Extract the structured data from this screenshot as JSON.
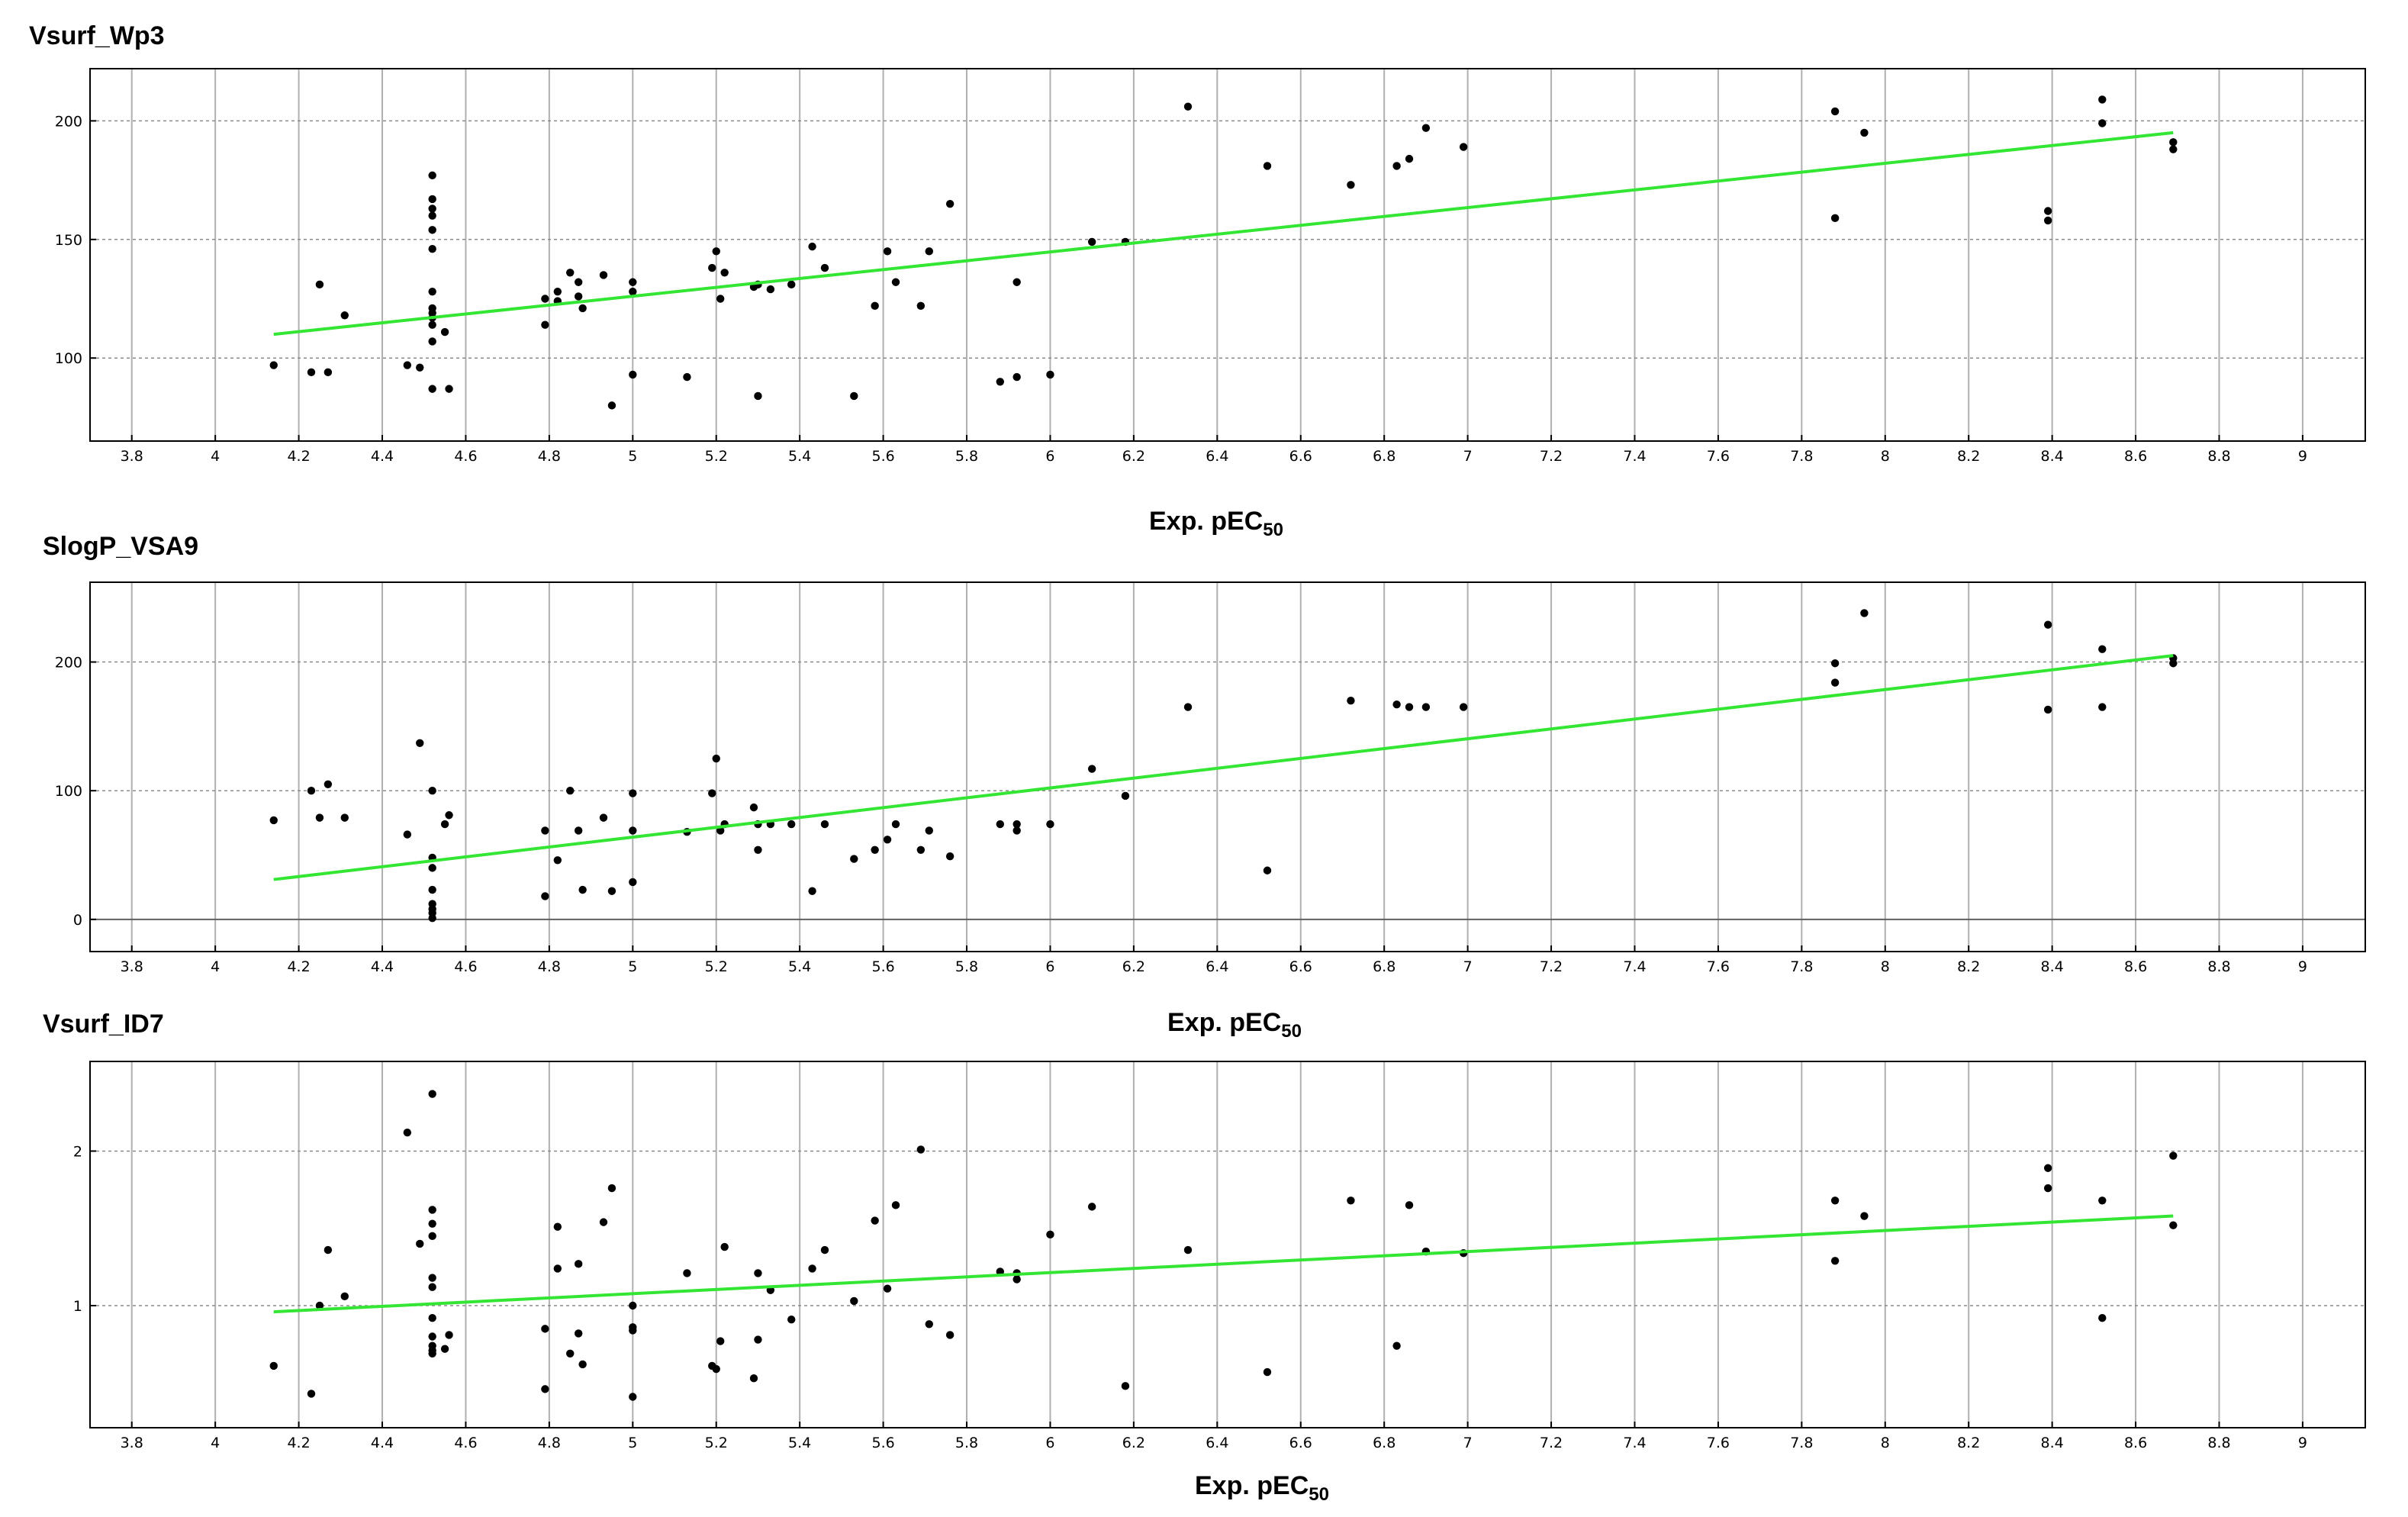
{
  "chart_data": [
    {
      "type": "scatter",
      "title": "Vsurf_Wp3",
      "xlabel": "Exp. pEC",
      "xlabel_sub": "50",
      "ylabel": "",
      "xlim": [
        3.7,
        9.15
      ],
      "ylim": [
        65,
        222
      ],
      "x_ticks": [
        3.8,
        4,
        4.2,
        4.4,
        4.6,
        4.8,
        5,
        5.2,
        5.4,
        5.6,
        5.8,
        6,
        6.2,
        6.4,
        6.6,
        6.8,
        7,
        7.2,
        7.4,
        7.6,
        7.8,
        8,
        8.2,
        8.4,
        8.6,
        8.8,
        9
      ],
      "y_ticks": [
        100,
        150,
        200
      ],
      "grid": true,
      "trendline": {
        "x": [
          4.14,
          8.69
        ],
        "y": [
          110,
          195
        ],
        "color": "#33e633"
      },
      "points": [
        [
          4.14,
          97
        ],
        [
          4.23,
          94
        ],
        [
          4.25,
          131
        ],
        [
          4.27,
          94
        ],
        [
          4.31,
          118
        ],
        [
          4.46,
          97
        ],
        [
          4.49,
          96
        ],
        [
          4.52,
          177
        ],
        [
          4.52,
          167
        ],
        [
          4.52,
          163
        ],
        [
          4.52,
          160
        ],
        [
          4.52,
          154
        ],
        [
          4.52,
          146
        ],
        [
          4.52,
          128
        ],
        [
          4.52,
          121
        ],
        [
          4.52,
          119
        ],
        [
          4.52,
          117
        ],
        [
          4.52,
          114
        ],
        [
          4.52,
          107
        ],
        [
          4.52,
          87
        ],
        [
          4.55,
          111
        ],
        [
          4.56,
          87
        ],
        [
          4.79,
          125
        ],
        [
          4.79,
          114
        ],
        [
          4.82,
          128
        ],
        [
          4.82,
          124
        ],
        [
          4.85,
          136
        ],
        [
          4.87,
          132
        ],
        [
          4.87,
          126
        ],
        [
          4.88,
          121
        ],
        [
          4.93,
          135
        ],
        [
          4.95,
          80
        ],
        [
          5.0,
          132
        ],
        [
          5.0,
          128
        ],
        [
          5.0,
          93
        ],
        [
          5.13,
          92
        ],
        [
          5.19,
          138
        ],
        [
          5.2,
          145
        ],
        [
          5.21,
          125
        ],
        [
          5.22,
          136
        ],
        [
          5.29,
          130
        ],
        [
          5.3,
          84
        ],
        [
          5.3,
          131
        ],
        [
          5.33,
          129
        ],
        [
          5.38,
          131
        ],
        [
          5.43,
          147
        ],
        [
          5.46,
          138
        ],
        [
          5.53,
          84
        ],
        [
          5.58,
          122
        ],
        [
          5.61,
          145
        ],
        [
          5.63,
          132
        ],
        [
          5.69,
          122
        ],
        [
          5.71,
          145
        ],
        [
          5.76,
          165
        ],
        [
          5.88,
          90
        ],
        [
          5.92,
          92
        ],
        [
          5.92,
          132
        ],
        [
          6.0,
          93
        ],
        [
          6.1,
          149
        ],
        [
          6.18,
          149
        ],
        [
          6.33,
          206
        ],
        [
          6.52,
          181
        ],
        [
          6.72,
          173
        ],
        [
          6.83,
          181
        ],
        [
          6.86,
          184
        ],
        [
          6.9,
          197
        ],
        [
          6.99,
          189
        ],
        [
          7.88,
          204
        ],
        [
          7.88,
          159
        ],
        [
          7.95,
          195
        ],
        [
          8.39,
          162
        ],
        [
          8.39,
          158
        ],
        [
          8.52,
          209
        ],
        [
          8.52,
          199
        ],
        [
          8.69,
          191
        ],
        [
          8.69,
          188
        ]
      ]
    },
    {
      "type": "scatter",
      "title": "SlogP_VSA9",
      "xlabel": "Exp. pEC",
      "xlabel_sub": "50",
      "ylabel": "",
      "xlim": [
        3.7,
        9.15
      ],
      "ylim": [
        -25,
        262
      ],
      "x_ticks": [
        3.8,
        4,
        4.2,
        4.4,
        4.6,
        4.8,
        5,
        5.2,
        5.4,
        5.6,
        5.8,
        6,
        6.2,
        6.4,
        6.6,
        6.8,
        7,
        7.2,
        7.4,
        7.6,
        7.8,
        8,
        8.2,
        8.4,
        8.6,
        8.8,
        9
      ],
      "y_ticks": [
        0,
        100,
        200
      ],
      "grid": true,
      "trendline": {
        "x": [
          4.14,
          8.69
        ],
        "y": [
          31,
          205
        ],
        "color": "#33e633"
      },
      "points": [
        [
          4.14,
          77
        ],
        [
          4.23,
          100
        ],
        [
          4.25,
          79
        ],
        [
          4.27,
          105
        ],
        [
          4.31,
          79
        ],
        [
          4.46,
          66
        ],
        [
          4.49,
          137
        ],
        [
          4.52,
          100
        ],
        [
          4.52,
          48
        ],
        [
          4.52,
          40
        ],
        [
          4.52,
          23
        ],
        [
          4.52,
          12
        ],
        [
          4.52,
          8
        ],
        [
          4.52,
          5
        ],
        [
          4.52,
          1
        ],
        [
          4.55,
          74
        ],
        [
          4.56,
          81
        ],
        [
          4.79,
          69
        ],
        [
          4.79,
          18
        ],
        [
          4.82,
          46
        ],
        [
          4.85,
          100
        ],
        [
          4.87,
          69
        ],
        [
          4.88,
          23
        ],
        [
          4.93,
          79
        ],
        [
          4.95,
          22
        ],
        [
          5.0,
          98
        ],
        [
          5.0,
          69
        ],
        [
          5.0,
          29
        ],
        [
          5.13,
          68
        ],
        [
          5.19,
          98
        ],
        [
          5.2,
          125
        ],
        [
          5.21,
          69
        ],
        [
          5.22,
          74
        ],
        [
          5.29,
          87
        ],
        [
          5.3,
          54
        ],
        [
          5.3,
          74
        ],
        [
          5.33,
          74
        ],
        [
          5.38,
          74
        ],
        [
          5.43,
          22
        ],
        [
          5.46,
          74
        ],
        [
          5.53,
          47
        ],
        [
          5.58,
          54
        ],
        [
          5.61,
          62
        ],
        [
          5.63,
          74
        ],
        [
          5.69,
          54
        ],
        [
          5.71,
          69
        ],
        [
          5.76,
          49
        ],
        [
          5.88,
          74
        ],
        [
          5.92,
          69
        ],
        [
          5.92,
          74
        ],
        [
          6.0,
          74
        ],
        [
          6.1,
          117
        ],
        [
          6.18,
          96
        ],
        [
          6.33,
          165
        ],
        [
          6.52,
          38
        ],
        [
          6.72,
          170
        ],
        [
          6.83,
          167
        ],
        [
          6.86,
          165
        ],
        [
          6.9,
          165
        ],
        [
          6.99,
          165
        ],
        [
          7.88,
          199
        ],
        [
          7.88,
          184
        ],
        [
          7.95,
          238
        ],
        [
          8.39,
          229
        ],
        [
          8.39,
          163
        ],
        [
          8.52,
          210
        ],
        [
          8.52,
          165
        ],
        [
          8.69,
          203
        ],
        [
          8.69,
          199
        ]
      ]
    },
    {
      "type": "scatter",
      "title": "Vsurf_ID7",
      "xlabel": "Exp. pEC",
      "xlabel_sub": "50",
      "ylabel": "",
      "xlim": [
        3.7,
        9.15
      ],
      "ylim": [
        0.21,
        2.58
      ],
      "x_ticks": [
        3.8,
        4,
        4.2,
        4.4,
        4.6,
        4.8,
        5,
        5.2,
        5.4,
        5.6,
        5.8,
        6,
        6.2,
        6.4,
        6.6,
        6.8,
        7,
        7.2,
        7.4,
        7.6,
        7.8,
        8,
        8.2,
        8.4,
        8.6,
        8.8,
        9
      ],
      "y_ticks": [
        1,
        2
      ],
      "grid": true,
      "trendline": {
        "x": [
          4.14,
          8.69
        ],
        "y": [
          0.96,
          1.58
        ],
        "color": "#33e633"
      },
      "points": [
        [
          4.14,
          0.61
        ],
        [
          4.23,
          0.43
        ],
        [
          4.25,
          1.0
        ],
        [
          4.27,
          1.36
        ],
        [
          4.31,
          1.06
        ],
        [
          4.46,
          2.12
        ],
        [
          4.49,
          1.4
        ],
        [
          4.52,
          2.37
        ],
        [
          4.52,
          1.62
        ],
        [
          4.52,
          1.53
        ],
        [
          4.52,
          1.45
        ],
        [
          4.52,
          1.18
        ],
        [
          4.52,
          1.12
        ],
        [
          4.52,
          0.92
        ],
        [
          4.52,
          0.8
        ],
        [
          4.52,
          0.74
        ],
        [
          4.52,
          0.71
        ],
        [
          4.52,
          0.69
        ],
        [
          4.55,
          0.72
        ],
        [
          4.56,
          0.81
        ],
        [
          4.79,
          0.85
        ],
        [
          4.79,
          0.46
        ],
        [
          4.82,
          1.51
        ],
        [
          4.82,
          1.24
        ],
        [
          4.85,
          0.69
        ],
        [
          4.87,
          1.27
        ],
        [
          4.87,
          0.82
        ],
        [
          4.88,
          0.62
        ],
        [
          4.93,
          1.54
        ],
        [
          4.95,
          1.76
        ],
        [
          5.0,
          1.0
        ],
        [
          5.0,
          0.86
        ],
        [
          5.0,
          0.84
        ],
        [
          5.0,
          0.41
        ],
        [
          5.13,
          1.21
        ],
        [
          5.19,
          0.61
        ],
        [
          5.2,
          0.59
        ],
        [
          5.21,
          0.77
        ],
        [
          5.22,
          1.38
        ],
        [
          5.29,
          0.53
        ],
        [
          5.3,
          0.78
        ],
        [
          5.3,
          1.21
        ],
        [
          5.33,
          1.1
        ],
        [
          5.38,
          0.91
        ],
        [
          5.43,
          1.24
        ],
        [
          5.46,
          1.36
        ],
        [
          5.53,
          1.03
        ],
        [
          5.58,
          1.55
        ],
        [
          5.61,
          1.11
        ],
        [
          5.63,
          1.65
        ],
        [
          5.69,
          2.01
        ],
        [
          5.71,
          0.88
        ],
        [
          5.76,
          0.81
        ],
        [
          5.88,
          1.22
        ],
        [
          5.92,
          1.21
        ],
        [
          5.92,
          1.17
        ],
        [
          6.0,
          1.46
        ],
        [
          6.1,
          1.64
        ],
        [
          6.18,
          0.48
        ],
        [
          6.33,
          1.36
        ],
        [
          6.52,
          0.57
        ],
        [
          6.72,
          1.68
        ],
        [
          6.83,
          0.74
        ],
        [
          6.86,
          1.65
        ],
        [
          6.9,
          1.35
        ],
        [
          6.99,
          1.34
        ],
        [
          7.88,
          1.68
        ],
        [
          7.88,
          1.29
        ],
        [
          7.95,
          1.58
        ],
        [
          8.39,
          1.89
        ],
        [
          8.39,
          1.76
        ],
        [
          8.52,
          1.68
        ],
        [
          8.52,
          0.92
        ],
        [
          8.69,
          1.97
        ],
        [
          8.69,
          1.52
        ]
      ]
    }
  ]
}
